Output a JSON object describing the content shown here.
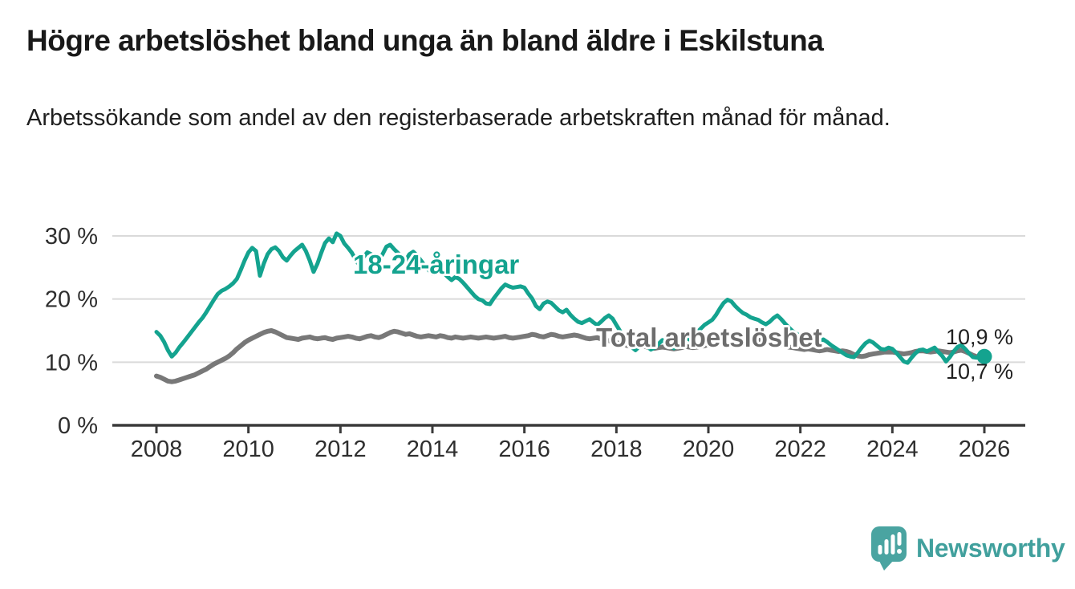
{
  "header": {
    "title": "Högre arbetslöshet bland unga än bland äldre i Eskilstuna",
    "subtitle": "Arbetssökande som andel av den registerbaserade arbetskraften månad för månad."
  },
  "chart_data": {
    "type": "line",
    "title": "Högre arbetslöshet bland unga än bland äldre i Eskilstuna",
    "subtitle": "Arbetssökande som andel av den registerbaserade arbetskraften månad för månad.",
    "x_unit": "month",
    "x_start": "2008-01",
    "x_end": "2026-01",
    "x_ticks": [
      2008,
      2010,
      2012,
      2014,
      2016,
      2018,
      2020,
      2022,
      2024,
      2026
    ],
    "y_ticks": [
      {
        "value": 0,
        "label": "0 %"
      },
      {
        "value": 10,
        "label": "10 %"
      },
      {
        "value": 20,
        "label": "20 %"
      },
      {
        "value": 30,
        "label": "30 %"
      }
    ],
    "ylim": [
      0,
      31
    ],
    "grid": "horizontal",
    "legend_position": "inline-labels",
    "series": [
      {
        "name": "18-24-åringar",
        "color": "#14a38f",
        "line_width": 5,
        "end_label": "10,9 %",
        "end_value": 10.9,
        "end_dot": true,
        "values": [
          14.8,
          14.2,
          13.2,
          11.9,
          10.9,
          11.5,
          12.4,
          13.1,
          13.9,
          14.7,
          15.5,
          16.3,
          17.0,
          17.9,
          18.9,
          19.9,
          20.8,
          21.3,
          21.6,
          22.0,
          22.5,
          23.2,
          24.6,
          26.1,
          27.4,
          28.1,
          27.6,
          23.7,
          25.6,
          27.1,
          27.9,
          28.2,
          27.6,
          26.6,
          26.1,
          26.9,
          27.6,
          28.1,
          28.6,
          27.6,
          26.1,
          24.3,
          25.6,
          27.3,
          28.9,
          29.6,
          29.0,
          30.4,
          30.0,
          28.8,
          28.1,
          27.3,
          26.2,
          25.3,
          26.6,
          27.4,
          27.1,
          26.6,
          26.2,
          27.1,
          28.3,
          28.6,
          27.9,
          27.3,
          26.7,
          26.1,
          27.1,
          27.5,
          26.9,
          26.1,
          25.3,
          24.6,
          24.0,
          24.5,
          24.8,
          24.1,
          23.5,
          23.0,
          23.5,
          23.2,
          22.6,
          21.9,
          21.2,
          20.5,
          20.0,
          19.8,
          19.3,
          19.2,
          20.1,
          20.9,
          21.7,
          22.3,
          22.0,
          21.8,
          21.9,
          22.0,
          21.8,
          20.9,
          20.1,
          18.9,
          18.4,
          19.3,
          19.6,
          19.4,
          18.8,
          18.2,
          17.9,
          18.3,
          17.5,
          16.9,
          16.4,
          16.2,
          16.5,
          16.8,
          16.3,
          15.9,
          16.4,
          17.0,
          17.4,
          16.9,
          15.9,
          14.9,
          14.0,
          13.1,
          12.4,
          11.9,
          12.5,
          13.1,
          12.5,
          12.0,
          12.3,
          12.9,
          13.5,
          13.1,
          12.6,
          12.2,
          12.7,
          13.4,
          14.0,
          13.6,
          14.1,
          14.7,
          15.3,
          15.9,
          16.3,
          16.7,
          17.5,
          18.5,
          19.4,
          19.9,
          19.6,
          18.9,
          18.3,
          17.8,
          17.5,
          17.1,
          16.9,
          16.7,
          16.3,
          16.0,
          16.4,
          17.0,
          17.4,
          16.8,
          16.1,
          15.5,
          14.9,
          14.5,
          14.1,
          13.9,
          14.1,
          13.8,
          13.4,
          13.1,
          13.6,
          13.2,
          12.7,
          12.3,
          11.9,
          11.5,
          11.1,
          10.9,
          10.8,
          11.5,
          12.3,
          13.0,
          13.4,
          13.1,
          12.6,
          12.1,
          12.0,
          12.3,
          12.1,
          11.5,
          10.8,
          10.1,
          9.9,
          10.7,
          11.4,
          11.9,
          12.0,
          11.7,
          12.0,
          12.3,
          11.6,
          11.0,
          10.1,
          10.8,
          11.7,
          12.4,
          12.7,
          12.1,
          11.4,
          10.8,
          10.7,
          10.8,
          10.9
        ]
      },
      {
        "name": "Total arbetslöshet",
        "color": "#787878",
        "line_width": 6,
        "end_label": "10,7 %",
        "end_value": 10.7,
        "end_dot": false,
        "values": [
          7.8,
          7.6,
          7.3,
          7.0,
          6.9,
          7.0,
          7.2,
          7.4,
          7.6,
          7.8,
          8.0,
          8.3,
          8.6,
          8.9,
          9.3,
          9.7,
          10.0,
          10.3,
          10.6,
          11.0,
          11.5,
          12.1,
          12.6,
          13.1,
          13.5,
          13.8,
          14.1,
          14.4,
          14.7,
          14.9,
          15.0,
          14.8,
          14.5,
          14.2,
          13.9,
          13.8,
          13.7,
          13.6,
          13.8,
          13.9,
          14.0,
          13.8,
          13.7,
          13.8,
          13.9,
          13.7,
          13.6,
          13.8,
          13.9,
          14.0,
          14.1,
          14.0,
          13.8,
          13.7,
          13.9,
          14.1,
          14.2,
          14.0,
          13.9,
          14.1,
          14.4,
          14.7,
          14.9,
          14.8,
          14.6,
          14.4,
          14.5,
          14.3,
          14.1,
          14.0,
          14.1,
          14.2,
          14.1,
          14.0,
          14.2,
          14.1,
          13.9,
          13.8,
          14.0,
          13.9,
          13.8,
          13.9,
          14.0,
          13.9,
          13.8,
          13.9,
          14.0,
          13.9,
          13.8,
          13.9,
          14.0,
          14.1,
          13.9,
          13.8,
          13.9,
          14.0,
          14.1,
          14.2,
          14.4,
          14.3,
          14.1,
          14.0,
          14.2,
          14.4,
          14.3,
          14.1,
          14.0,
          14.1,
          14.2,
          14.3,
          14.2,
          14.0,
          13.8,
          13.7,
          13.8,
          13.9,
          13.7,
          13.5,
          13.4,
          13.3,
          13.1,
          12.9,
          12.8,
          12.6,
          12.5,
          12.4,
          12.5,
          12.6,
          12.4,
          12.3,
          12.2,
          12.3,
          12.4,
          12.3,
          12.2,
          12.1,
          12.2,
          12.3,
          12.5,
          12.4,
          12.3,
          12.4,
          12.5,
          12.6,
          12.8,
          13.1,
          13.5,
          13.9,
          14.2,
          14.4,
          14.4,
          14.3,
          14.1,
          13.9,
          13.8,
          13.7,
          13.6,
          13.5,
          13.4,
          13.2,
          13.1,
          13.0,
          12.9,
          12.8,
          12.6,
          12.4,
          12.3,
          12.2,
          12.1,
          12.0,
          12.1,
          12.0,
          11.9,
          11.8,
          11.9,
          12.0,
          11.9,
          11.8,
          11.7,
          11.8,
          11.7,
          11.5,
          11.2,
          11.0,
          10.9,
          11.0,
          11.2,
          11.3,
          11.4,
          11.5,
          11.6,
          11.6,
          11.6,
          11.5,
          11.4,
          11.3,
          11.4,
          11.5,
          11.7,
          11.8,
          11.8,
          11.7,
          11.6,
          11.7,
          11.8,
          11.7,
          11.6,
          11.5,
          11.6,
          11.8,
          11.9,
          11.7,
          11.4,
          11.1,
          10.9,
          10.8,
          10.7
        ]
      }
    ]
  },
  "branding": {
    "logo_text": "Newsworthy",
    "logo_color": "#4aa4a1",
    "logo_icon": "speech-bubble-bar-chart-icon"
  }
}
